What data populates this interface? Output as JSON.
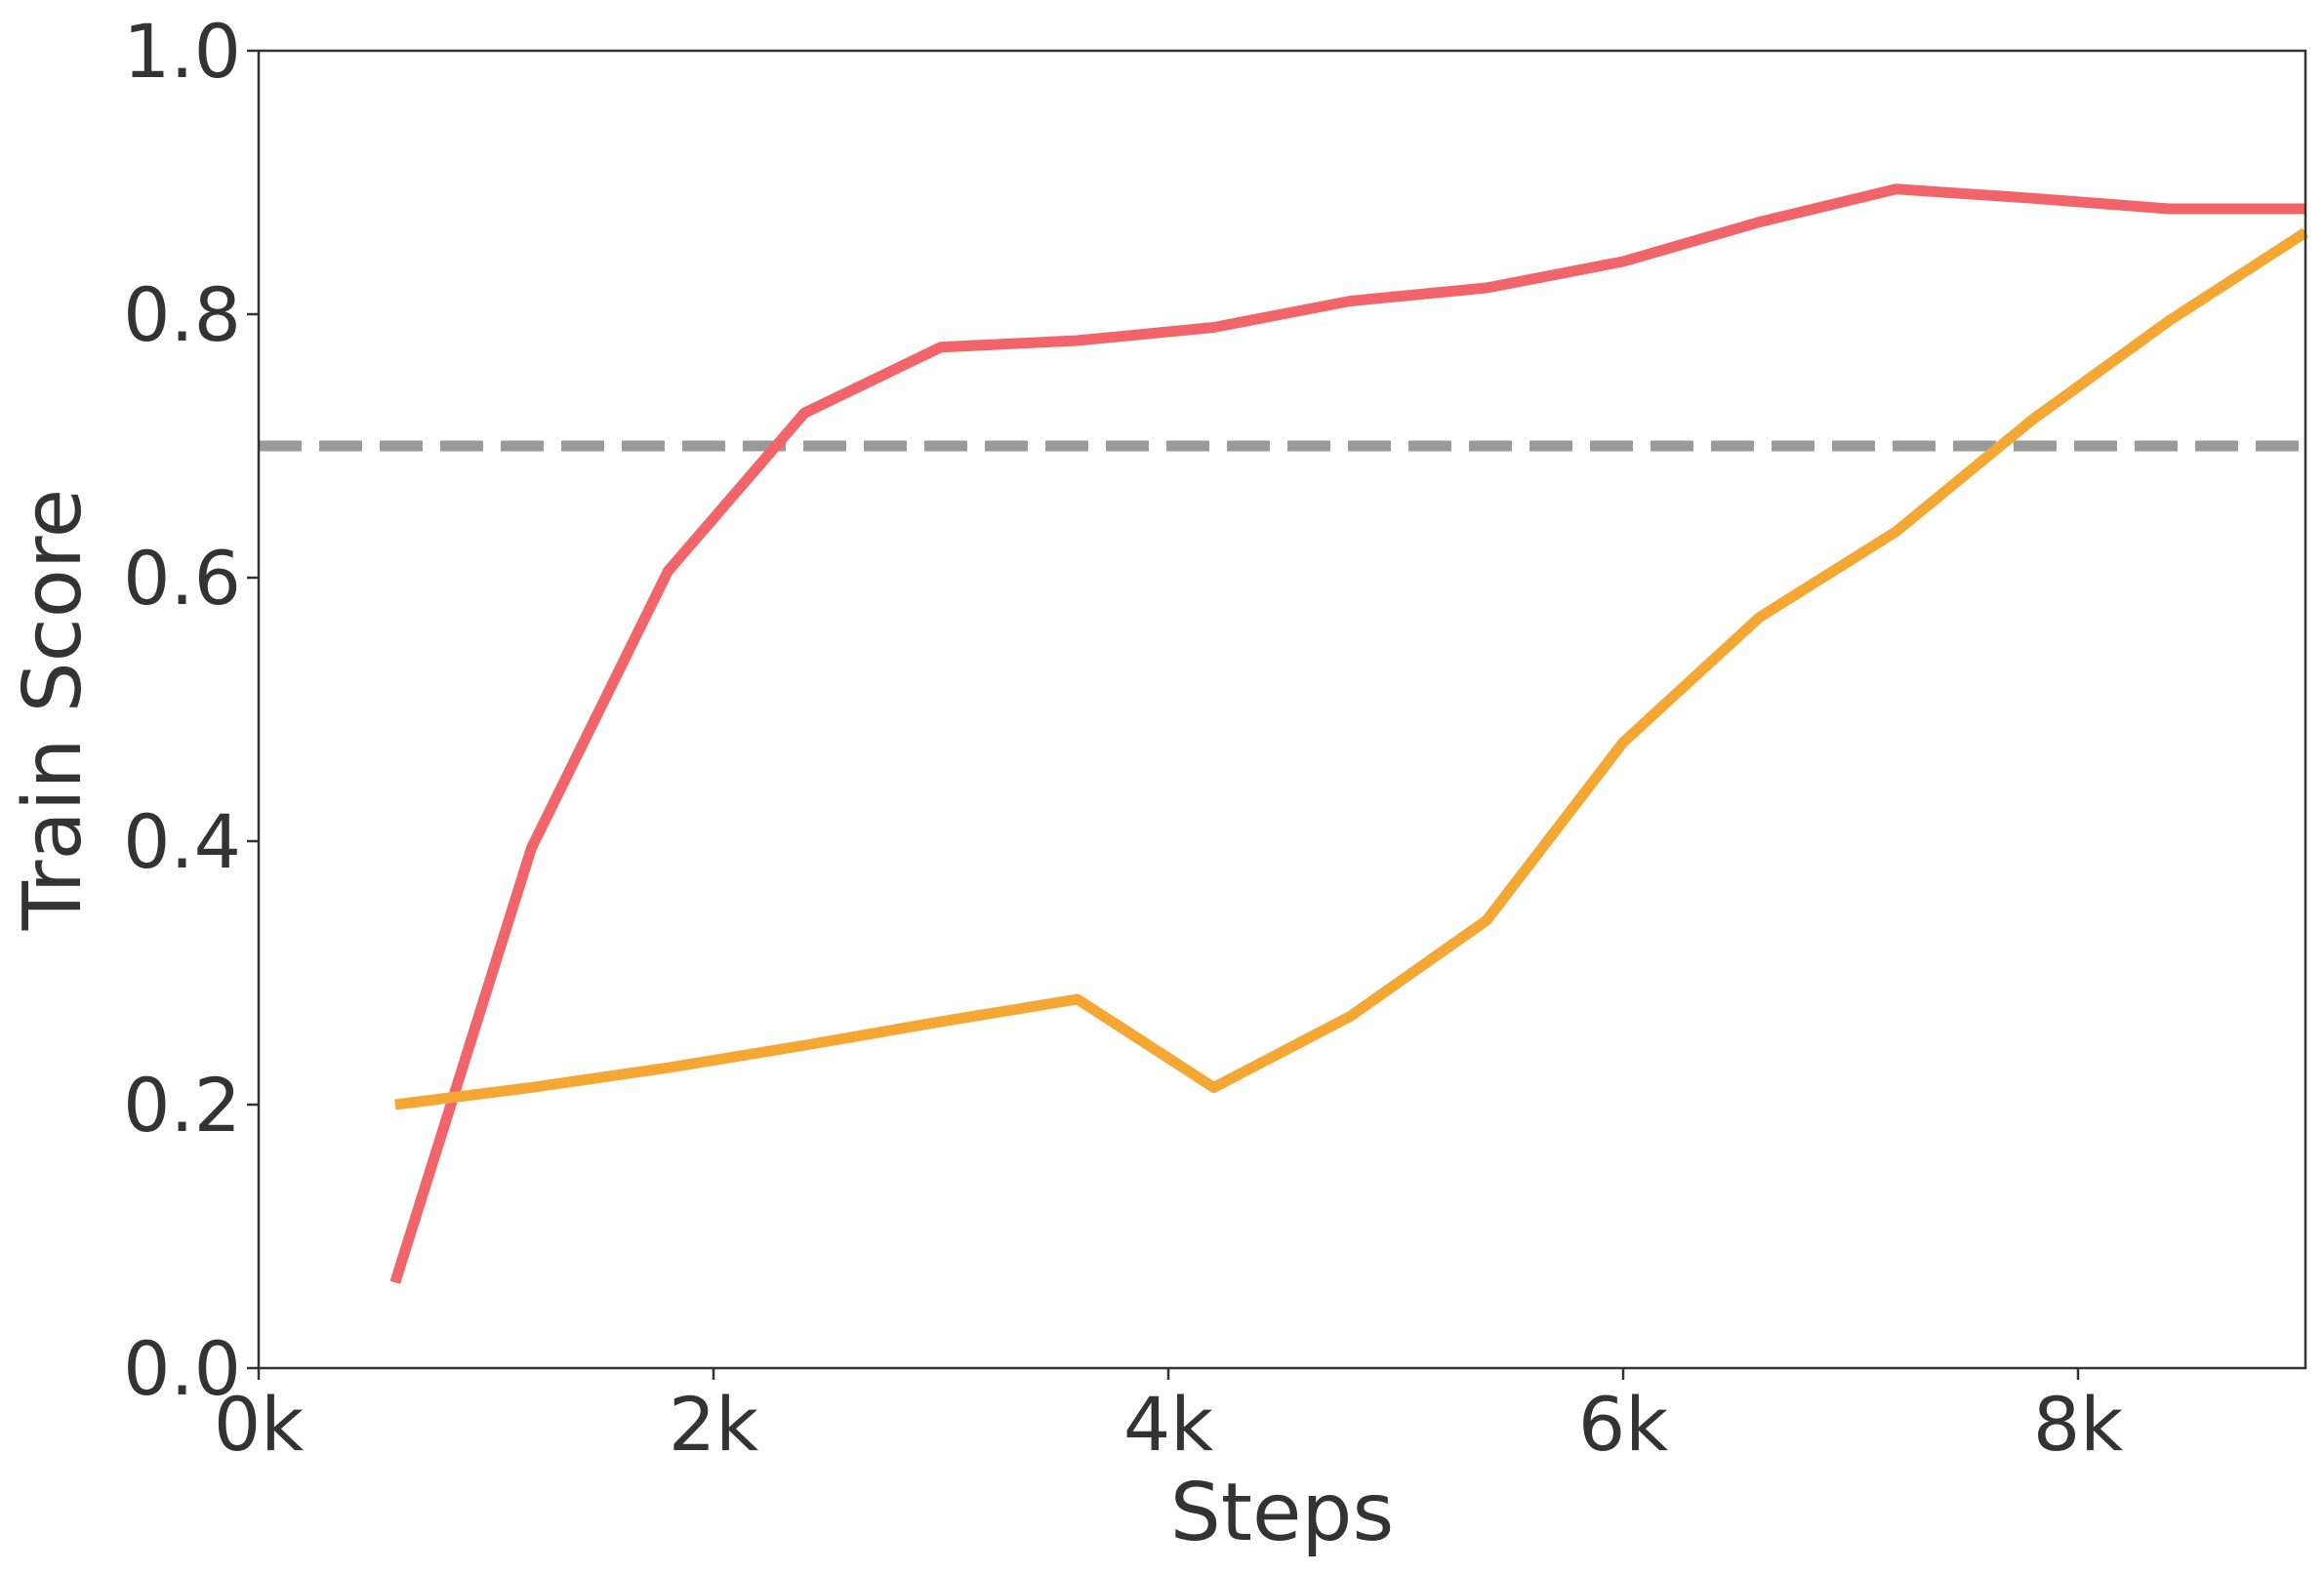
{
  "chart_data": {
    "type": "line",
    "xlabel": "Steps",
    "ylabel": "Train Score",
    "xlim": [
      0,
      9000
    ],
    "ylim": [
      0.0,
      1.0
    ],
    "x_ticks": [
      0,
      2000,
      4000,
      6000,
      8000
    ],
    "x_tick_labels": [
      "0k",
      "2k",
      "4k",
      "6k",
      "8k"
    ],
    "y_ticks": [
      0.0,
      0.2,
      0.4,
      0.6,
      0.8,
      1.0
    ],
    "y_tick_labels": [
      "0.0",
      "0.2",
      "0.4",
      "0.6",
      "0.8",
      "1.0"
    ],
    "grid": false,
    "reference_line": {
      "y": 0.7,
      "style": "dashed",
      "color": "#999999"
    },
    "series": [
      {
        "color": "#f0646a",
        "x": [
          600,
          1200,
          1800,
          2400,
          3000,
          3600,
          4200,
          4800,
          5400,
          6000,
          6600,
          7200,
          7800,
          8400,
          9000
        ],
        "y": [
          0.065,
          0.395,
          0.605,
          0.725,
          0.775,
          0.78,
          0.79,
          0.81,
          0.82,
          0.84,
          0.87,
          0.895,
          0.888,
          0.88,
          0.88
        ]
      },
      {
        "color": "#f5a733",
        "x": [
          600,
          1200,
          1800,
          2400,
          3000,
          3600,
          4200,
          4800,
          5400,
          6000,
          6600,
          7200,
          7800,
          8400,
          9000
        ],
        "y": [
          0.2,
          0.213,
          0.228,
          0.245,
          0.263,
          0.28,
          0.213,
          0.267,
          0.34,
          0.475,
          0.57,
          0.635,
          0.72,
          0.795,
          0.862
        ]
      }
    ]
  }
}
